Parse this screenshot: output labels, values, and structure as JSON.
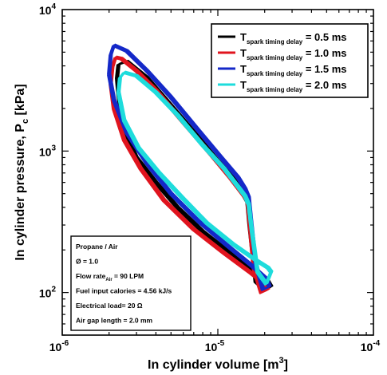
{
  "chart_data": {
    "type": "line",
    "x_scale": "log",
    "y_scale": "log",
    "xlim": [
      1e-06,
      0.0001
    ],
    "ylim": [
      50,
      10000
    ],
    "xlabel": "In cylinder volume [m",
    "xlabel_sup": "3",
    "xlabel_end": "]",
    "ylabel": "In cylinder pressure, P",
    "ylabel_sub": "c",
    "ylabel_end": " [kPa]",
    "x_ticks": [
      {
        "base": "10",
        "exp": "-6",
        "value": 1e-06
      },
      {
        "base": "10",
        "exp": "-5",
        "value": 1e-05
      },
      {
        "base": "10",
        "exp": "-4",
        "value": 0.0001
      }
    ],
    "y_ticks": [
      {
        "base": "10",
        "exp": "2",
        "value": 100
      },
      {
        "base": "10",
        "exp": "3",
        "value": 1000
      },
      {
        "base": "10",
        "exp": "4",
        "value": 10000
      }
    ],
    "legend_position": "top-right",
    "series": [
      {
        "legend_prefix": "T",
        "legend_sub": "spark timing delay",
        "legend_suffix": " = 0.5 ms",
        "color": "#000000",
        "x": [
          2.3e-06,
          2.25e-06,
          2.3e-06,
          2.6e-06,
          3.5e-06,
          5e-06,
          7.5e-06,
          1e-05,
          1.3e-05,
          1.45e-05,
          1.55e-05,
          1.6e-05,
          1.75e-05,
          2e-05,
          2.2e-05,
          2.1e-05,
          1.7e-05,
          1.2e-05,
          8e-06,
          5.5e-06,
          4e-06,
          3e-06,
          2.5e-06,
          2.3e-06
        ],
        "y": [
          2500,
          3300,
          4100,
          4300,
          3300,
          2100,
          1250,
          850,
          620,
          500,
          440,
          300,
          120,
          105,
          110,
          120,
          140,
          190,
          270,
          400,
          600,
          900,
          1400,
          2500
        ]
      },
      {
        "legend_prefix": "T",
        "legend_sub": "spark timing delay",
        "legend_suffix": " = 1.0 ms",
        "color": "#e0141e",
        "x": [
          2.05e-06,
          2.1e-06,
          2.2e-06,
          2.4e-06,
          3e-06,
          4e-06,
          6e-06,
          9e-06,
          1.2e-05,
          1.4e-05,
          1.55e-05,
          1.6e-05,
          1.7e-05,
          1.9e-05,
          2.1e-05,
          2e-05,
          1.6e-05,
          1.1e-05,
          7e-06,
          4.5e-06,
          3.2e-06,
          2.5e-06,
          2.15e-06,
          2.05e-06
        ],
        "y": [
          3000,
          3900,
          4600,
          4500,
          3700,
          2700,
          1600,
          950,
          650,
          520,
          450,
          320,
          150,
          100,
          105,
          115,
          140,
          190,
          280,
          450,
          750,
          1200,
          2000,
          3000
        ]
      },
      {
        "legend_prefix": "T",
        "legend_sub": "spark timing delay",
        "legend_suffix": " = 1.5 ms",
        "color": "#1428c8",
        "x": [
          2e-06,
          2.05e-06,
          2.15e-06,
          2.6e-06,
          3.5e-06,
          5e-06,
          7.5e-06,
          1.05e-05,
          1.35e-05,
          1.5e-05,
          1.58e-05,
          1.63e-05,
          1.75e-05,
          1.95e-05,
          2.15e-05,
          2.05e-05,
          1.65e-05,
          1.15e-05,
          7.5e-06,
          5e-06,
          3.5e-06,
          2.6e-06,
          2.15e-06,
          2e-06
        ],
        "y": [
          3500,
          4800,
          5600,
          5100,
          3700,
          2400,
          1400,
          900,
          650,
          540,
          470,
          330,
          160,
          105,
          110,
          125,
          155,
          215,
          320,
          500,
          820,
          1350,
          2300,
          3500
        ]
      },
      {
        "legend_prefix": "T",
        "legend_sub": "spark timing delay",
        "legend_suffix": " = 2.0 ms",
        "color": "#1edcdc",
        "x": [
          2.3e-06,
          2.35e-06,
          2.5e-06,
          3e-06,
          4e-06,
          5.5e-06,
          8e-06,
          1.1e-05,
          1.35e-05,
          1.5e-05,
          1.58e-05,
          1.65e-05,
          1.8e-05,
          2.05e-05,
          2.2e-05,
          2.1e-05,
          1.75e-05,
          1.25e-05,
          8.5e-06,
          6e-06,
          4.2e-06,
          3.1e-06,
          2.5e-06,
          2.3e-06
        ],
        "y": [
          2600,
          3300,
          3600,
          3400,
          2600,
          1800,
          1100,
          750,
          560,
          480,
          420,
          280,
          140,
          115,
          140,
          150,
          170,
          220,
          310,
          460,
          700,
          1050,
          1650,
          2600
        ]
      }
    ],
    "annotation_lines": [
      {
        "text": "Propane / Air"
      },
      {
        "text": "Ø = 1.0"
      },
      {
        "text": "Flow rate",
        "sub": "Air",
        "suffix": " = 90 LPM"
      },
      {
        "text": "Fuel input calories  = 4.56 kJ/s"
      },
      {
        "text": "Electrical load= 20 Ω"
      },
      {
        "text": "Air gap length = 2.0 mm"
      }
    ]
  }
}
